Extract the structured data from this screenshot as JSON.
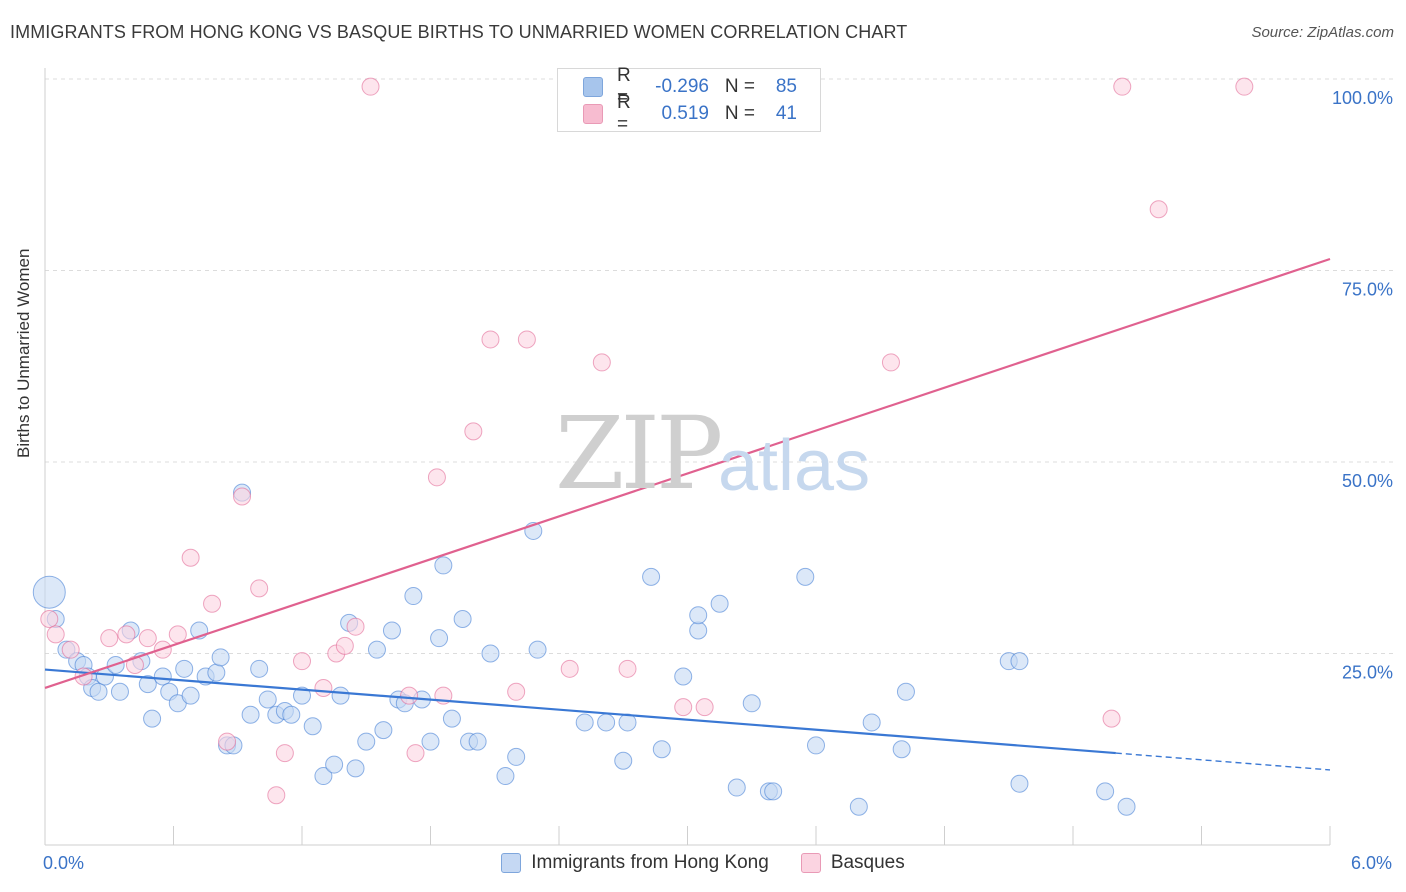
{
  "title": "IMMIGRANTS FROM HONG KONG VS BASQUE BIRTHS TO UNMARRIED WOMEN CORRELATION CHART",
  "source": "Source: ZipAtlas.com",
  "watermark": {
    "zip": "ZIP",
    "atlas": "atlas"
  },
  "stats": [
    {
      "label": "R =",
      "r": "-0.296",
      "n_label": "N =",
      "n": "85",
      "color": "#a7c5ec",
      "border": "#7ea6dc"
    },
    {
      "label": "R =",
      "r": "0.519",
      "n_label": "N =",
      "n": "41",
      "color": "#f7bcd0",
      "border": "#e99ab6"
    }
  ],
  "legend": [
    {
      "name": "Immigrants from Hong Kong",
      "color": "#c5d8f3",
      "border": "#7ea6dc"
    },
    {
      "name": "Basques",
      "color": "#fbd4e1",
      "border": "#e99ab6"
    }
  ],
  "chart_data": {
    "type": "scatter",
    "ylabel": "Births to Unmarried Women",
    "xlim": [
      0,
      6.0
    ],
    "ylim": [
      0,
      100
    ],
    "x_tick_labels": [
      "0.0%",
      "6.0%"
    ],
    "y_ticks": [
      25,
      50,
      75,
      100
    ],
    "y_tick_labels": [
      "25.0%",
      "50.0%",
      "75.0%",
      "100.0%"
    ],
    "grid": "horizontal dashed",
    "series": [
      {
        "name": "Immigrants from Hong Kong",
        "color": "#3a78d4",
        "fill": "#c5d8f3",
        "trend": {
          "x": [
            0,
            5.0
          ],
          "y": [
            22.9,
            12.0
          ],
          "extend_dashed_to": [
            6.0,
            9.8
          ]
        },
        "points": [
          [
            0.02,
            33.0
          ],
          [
            0.05,
            29.5
          ],
          [
            0.1,
            25.5
          ],
          [
            0.15,
            24.0
          ],
          [
            0.18,
            23.5
          ],
          [
            0.2,
            22.0
          ],
          [
            0.22,
            20.5
          ],
          [
            0.25,
            20.0
          ],
          [
            0.28,
            22.0
          ],
          [
            0.33,
            23.5
          ],
          [
            0.35,
            20.0
          ],
          [
            0.4,
            28.0
          ],
          [
            0.45,
            24.0
          ],
          [
            0.48,
            21.0
          ],
          [
            0.5,
            16.5
          ],
          [
            0.55,
            22.0
          ],
          [
            0.58,
            20.0
          ],
          [
            0.62,
            18.5
          ],
          [
            0.65,
            23.0
          ],
          [
            0.68,
            19.5
          ],
          [
            0.72,
            28.0
          ],
          [
            0.75,
            22.0
          ],
          [
            0.8,
            22.5
          ],
          [
            0.82,
            24.5
          ],
          [
            0.85,
            13.0
          ],
          [
            0.88,
            13.0
          ],
          [
            0.92,
            46.0
          ],
          [
            0.96,
            17.0
          ],
          [
            1.0,
            23.0
          ],
          [
            1.04,
            19.0
          ],
          [
            1.08,
            17.0
          ],
          [
            1.12,
            17.5
          ],
          [
            1.15,
            17.0
          ],
          [
            1.2,
            19.5
          ],
          [
            1.25,
            15.5
          ],
          [
            1.3,
            9.0
          ],
          [
            1.35,
            10.5
          ],
          [
            1.38,
            19.5
          ],
          [
            1.42,
            29.0
          ],
          [
            1.45,
            10.0
          ],
          [
            1.5,
            13.5
          ],
          [
            1.55,
            25.5
          ],
          [
            1.58,
            15.0
          ],
          [
            1.62,
            28.0
          ],
          [
            1.65,
            19.0
          ],
          [
            1.68,
            18.5
          ],
          [
            1.72,
            32.5
          ],
          [
            1.76,
            19.0
          ],
          [
            1.8,
            13.5
          ],
          [
            1.84,
            27.0
          ],
          [
            1.86,
            36.5
          ],
          [
            1.9,
            16.5
          ],
          [
            1.95,
            29.5
          ],
          [
            1.98,
            13.5
          ],
          [
            2.02,
            13.5
          ],
          [
            2.08,
            25.0
          ],
          [
            2.15,
            9.0
          ],
          [
            2.2,
            11.5
          ],
          [
            2.28,
            41.0
          ],
          [
            2.3,
            25.5
          ],
          [
            2.52,
            16.0
          ],
          [
            2.62,
            16.0
          ],
          [
            2.7,
            11.0
          ],
          [
            2.72,
            16.0
          ],
          [
            2.83,
            35.0
          ],
          [
            2.88,
            12.5
          ],
          [
            2.98,
            22.0
          ],
          [
            3.05,
            28.0
          ],
          [
            3.05,
            30.0
          ],
          [
            3.15,
            31.5
          ],
          [
            3.23,
            7.5
          ],
          [
            3.3,
            18.5
          ],
          [
            3.38,
            7.0
          ],
          [
            3.4,
            7.0
          ],
          [
            3.55,
            35.0
          ],
          [
            3.6,
            13.0
          ],
          [
            3.8,
            5.0
          ],
          [
            3.86,
            16.0
          ],
          [
            4.0,
            12.5
          ],
          [
            4.02,
            20.0
          ],
          [
            4.5,
            24.0
          ],
          [
            4.55,
            24.0
          ],
          [
            4.55,
            8.0
          ],
          [
            4.95,
            7.0
          ],
          [
            5.05,
            5.0
          ]
        ]
      },
      {
        "name": "Basques",
        "color": "#e0618f",
        "fill": "#fbd4e1",
        "trend": {
          "x": [
            0,
            6.0
          ],
          "y": [
            20.5,
            76.5
          ]
        },
        "points": [
          [
            0.02,
            29.5
          ],
          [
            0.05,
            27.5
          ],
          [
            0.12,
            25.5
          ],
          [
            0.18,
            22.0
          ],
          [
            0.3,
            27.0
          ],
          [
            0.38,
            27.5
          ],
          [
            0.42,
            23.5
          ],
          [
            0.48,
            27.0
          ],
          [
            0.55,
            25.5
          ],
          [
            0.62,
            27.5
          ],
          [
            0.68,
            37.5
          ],
          [
            0.78,
            31.5
          ],
          [
            0.85,
            13.5
          ],
          [
            0.92,
            45.5
          ],
          [
            1.0,
            33.5
          ],
          [
            1.08,
            6.5
          ],
          [
            1.12,
            12.0
          ],
          [
            1.2,
            24.0
          ],
          [
            1.3,
            20.5
          ],
          [
            1.36,
            25.0
          ],
          [
            1.4,
            26.0
          ],
          [
            1.45,
            28.5
          ],
          [
            1.52,
            99.0
          ],
          [
            1.7,
            19.5
          ],
          [
            1.73,
            12.0
          ],
          [
            1.83,
            48.0
          ],
          [
            1.86,
            19.5
          ],
          [
            2.0,
            54.0
          ],
          [
            2.08,
            66.0
          ],
          [
            2.2,
            20.0
          ],
          [
            2.25,
            66.0
          ],
          [
            2.45,
            23.0
          ],
          [
            2.6,
            63.0
          ],
          [
            2.72,
            23.0
          ],
          [
            2.98,
            18.0
          ],
          [
            3.08,
            18.0
          ],
          [
            3.95,
            63.0
          ],
          [
            4.98,
            16.5
          ],
          [
            5.03,
            99.0
          ],
          [
            5.2,
            83.0
          ],
          [
            5.6,
            99.0
          ]
        ]
      }
    ]
  }
}
